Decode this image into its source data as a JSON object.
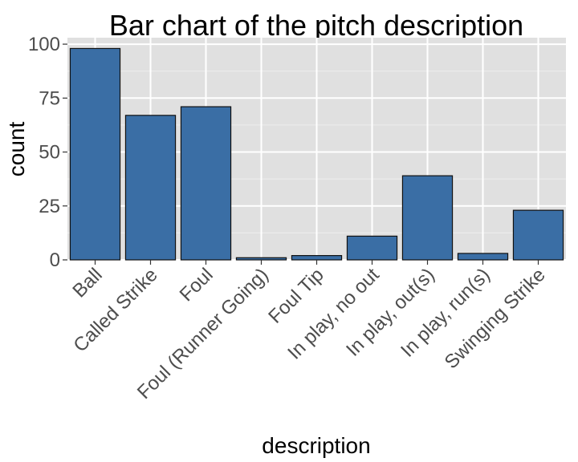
{
  "chart_data": {
    "type": "bar",
    "title": "Bar chart of the pitch description",
    "xlabel": "description",
    "ylabel": "count",
    "categories": [
      "Ball",
      "Called Strike",
      "Foul",
      "Foul (Runner Going)",
      "Foul Tip",
      "In play, no out",
      "In play, out(s)",
      "In play, run(s)",
      "Swinging Strike"
    ],
    "values": [
      98,
      67,
      71,
      1,
      2,
      11,
      39,
      3,
      23
    ],
    "ylim": [
      0,
      103
    ],
    "yticks": [
      0,
      25,
      50,
      75,
      100
    ],
    "ytick_labels": [
      "0",
      "25",
      "50",
      "75",
      "100"
    ],
    "grid": true,
    "legend": "none",
    "colors": {
      "bar_fill": "#3a6ea5",
      "bar_stroke": "#111111",
      "panel_bg": "#e0e0e0",
      "grid_major": "#ffffff",
      "grid_minor": "#eeeeee"
    }
  }
}
